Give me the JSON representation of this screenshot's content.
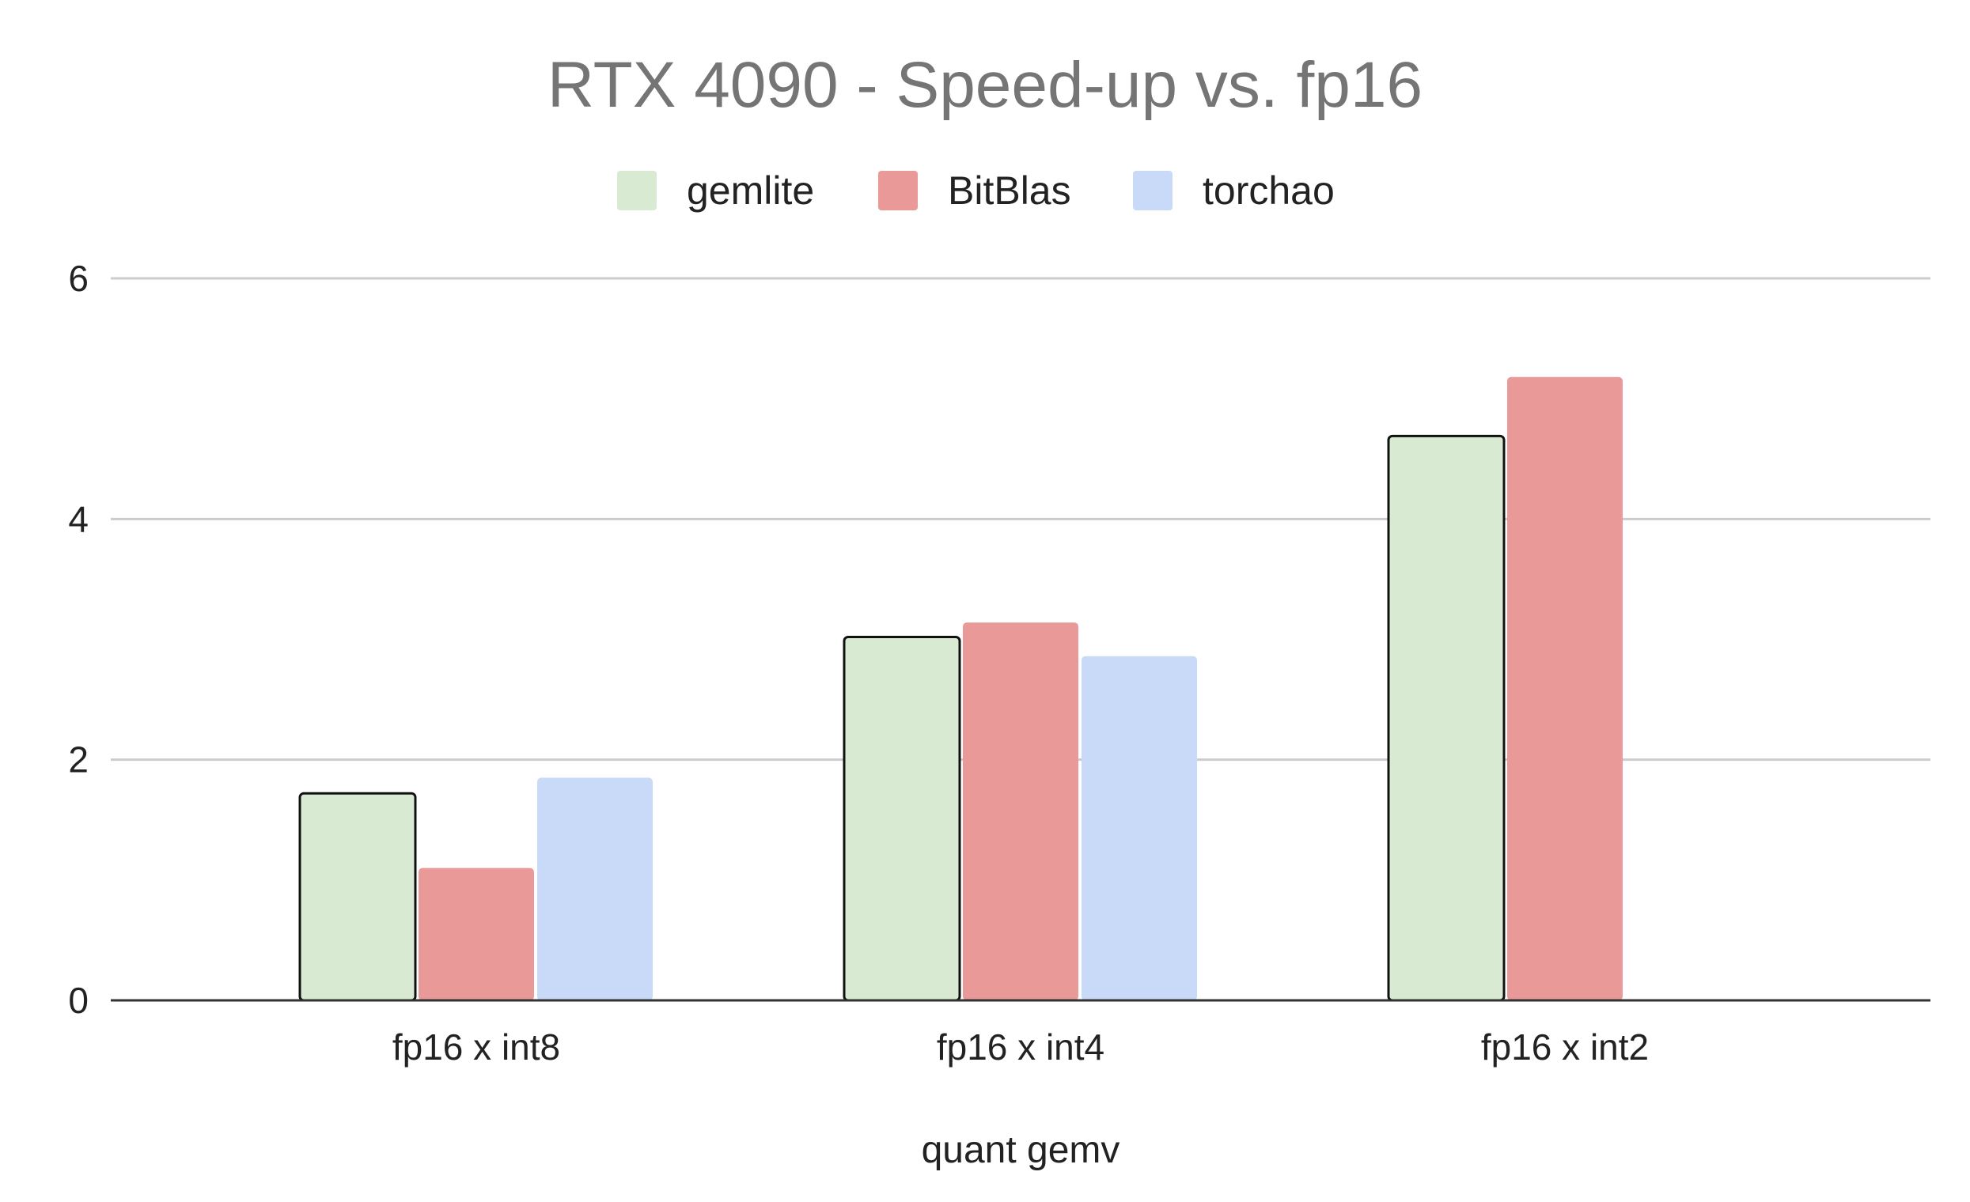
{
  "chart_data": {
    "type": "bar",
    "title": "RTX 4090 - Speed-up vs. fp16",
    "xlabel": "quant gemv",
    "ylabel": "",
    "categories": [
      "fp16 x int8",
      "fp16 x int4",
      "fp16 x int2"
    ],
    "series": [
      {
        "name": "gemlite",
        "color": "#d9ead3",
        "outlined": true,
        "values": [
          1.72,
          3.02,
          4.69
        ]
      },
      {
        "name": "BitBlas",
        "color": "#ea9999",
        "outlined": false,
        "values": [
          1.1,
          3.14,
          5.18
        ]
      },
      {
        "name": "torchao",
        "color": "#c9daf8",
        "outlined": false,
        "values": [
          1.85,
          2.86,
          null
        ]
      }
    ],
    "ylim": [
      0,
      6
    ],
    "yticks": [
      0,
      2,
      4,
      6
    ],
    "grid": true,
    "legend_position": "top"
  }
}
